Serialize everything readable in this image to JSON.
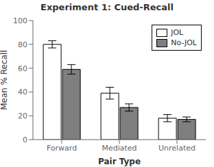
{
  "chart_data": {
    "type": "bar",
    "title": "Experiment 1: Cued-Recall",
    "xlabel": "Pair Type",
    "ylabel": "Mean % Recall",
    "categories": [
      "Forward",
      "Mediated",
      "Unrelated"
    ],
    "series": [
      {
        "name": "JOL",
        "color": "#ffffff",
        "values": [
          80,
          39,
          18
        ],
        "errors": [
          3,
          5,
          3
        ]
      },
      {
        "name": "No-JOL",
        "color": "#7f7f7f",
        "values": [
          59,
          27,
          17
        ],
        "errors": [
          4,
          3,
          2
        ]
      }
    ],
    "ylim": [
      0,
      100
    ],
    "yticks": [
      0,
      20,
      40,
      60,
      80,
      100
    ],
    "grid": false,
    "legend": "upper right"
  }
}
